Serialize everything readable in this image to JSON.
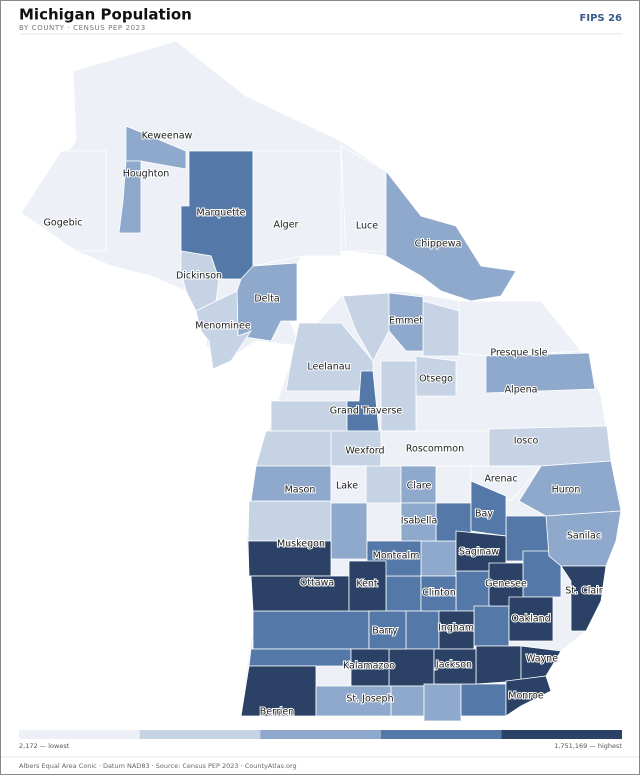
{
  "header": {
    "title": "Michigan Population",
    "subtitle": "BY COUNTY · CENSUS PEP 2023",
    "fips": "FIPS 26"
  },
  "counties": [
    {
      "name": "Keweenaw",
      "color": "#8ea9cb"
    },
    {
      "name": "Houghton",
      "color": "#8ea9cb"
    },
    {
      "name": "Gogebic",
      "color": "#edf1f7"
    },
    {
      "name": "Marquette",
      "color": "#5479a8"
    },
    {
      "name": "Alger",
      "color": "#edf1f7"
    },
    {
      "name": "Luce",
      "color": "#edf1f7"
    },
    {
      "name": "Chippewa",
      "color": "#8ea9cb"
    },
    {
      "name": "Dickinson",
      "color": "#c5d3e4"
    },
    {
      "name": "Delta",
      "color": "#8ea9cb"
    },
    {
      "name": "Menominee",
      "color": "#c5d3e4"
    },
    {
      "name": "Emmet",
      "color": "#8ea9cb"
    },
    {
      "name": "Presque Isle",
      "color": "#edf1f7"
    },
    {
      "name": "Leelanau",
      "color": "#c5d3e4"
    },
    {
      "name": "Otsego",
      "color": "#c5d3e4"
    },
    {
      "name": "Alpena",
      "color": "#8ea9cb"
    },
    {
      "name": "Grand Traverse",
      "color": "#5479a8"
    },
    {
      "name": "Wexford",
      "color": "#c5d3e4"
    },
    {
      "name": "Roscommon",
      "color": "#edf1f7"
    },
    {
      "name": "Iosco",
      "color": "#c5d3e4"
    },
    {
      "name": "Mason",
      "color": "#8ea9cb"
    },
    {
      "name": "Lake",
      "color": "#edf1f7"
    },
    {
      "name": "Clare",
      "color": "#8ea9cb"
    },
    {
      "name": "Arenac",
      "color": "#edf1f7"
    },
    {
      "name": "Huron",
      "color": "#8ea9cb"
    },
    {
      "name": "Isabella",
      "color": "#8ea9cb"
    },
    {
      "name": "Bay",
      "color": "#5479a8"
    },
    {
      "name": "Sanilac",
      "color": "#8ea9cb"
    },
    {
      "name": "Muskegon",
      "color": "#2b4266"
    },
    {
      "name": "Montcalm",
      "color": "#5479a8"
    },
    {
      "name": "Saginaw",
      "color": "#2b4266"
    },
    {
      "name": "Ottawa",
      "color": "#2b4266"
    },
    {
      "name": "Kent",
      "color": "#2b4266"
    },
    {
      "name": "Clinton",
      "color": "#5479a8"
    },
    {
      "name": "Genesee",
      "color": "#2b4266"
    },
    {
      "name": "St. Clair",
      "color": "#2b4266"
    },
    {
      "name": "Barry",
      "color": "#5479a8"
    },
    {
      "name": "Ingham",
      "color": "#2b4266"
    },
    {
      "name": "Oakland",
      "color": "#2b4266"
    },
    {
      "name": "Kalamazoo",
      "color": "#2b4266"
    },
    {
      "name": "Jackson",
      "color": "#2b4266"
    },
    {
      "name": "Wayne",
      "color": "#2b4266"
    },
    {
      "name": "Berrien",
      "color": "#2b4266"
    },
    {
      "name": "St. Joseph",
      "color": "#8ea9cb"
    },
    {
      "name": "Monroe",
      "color": "#2b4266"
    }
  ],
  "legend": {
    "colors": [
      "#edf1f7",
      "#c5d3e4",
      "#8ea9cb",
      "#5479a8",
      "#2b4266"
    ],
    "min_label": "2,172 — lowest",
    "max_label": "1,751,169 — highest"
  },
  "footer": "Albers Equal Area Conic · Datum NAD83 · Source: Census PEP 2023 · CountyAtlas.org"
}
